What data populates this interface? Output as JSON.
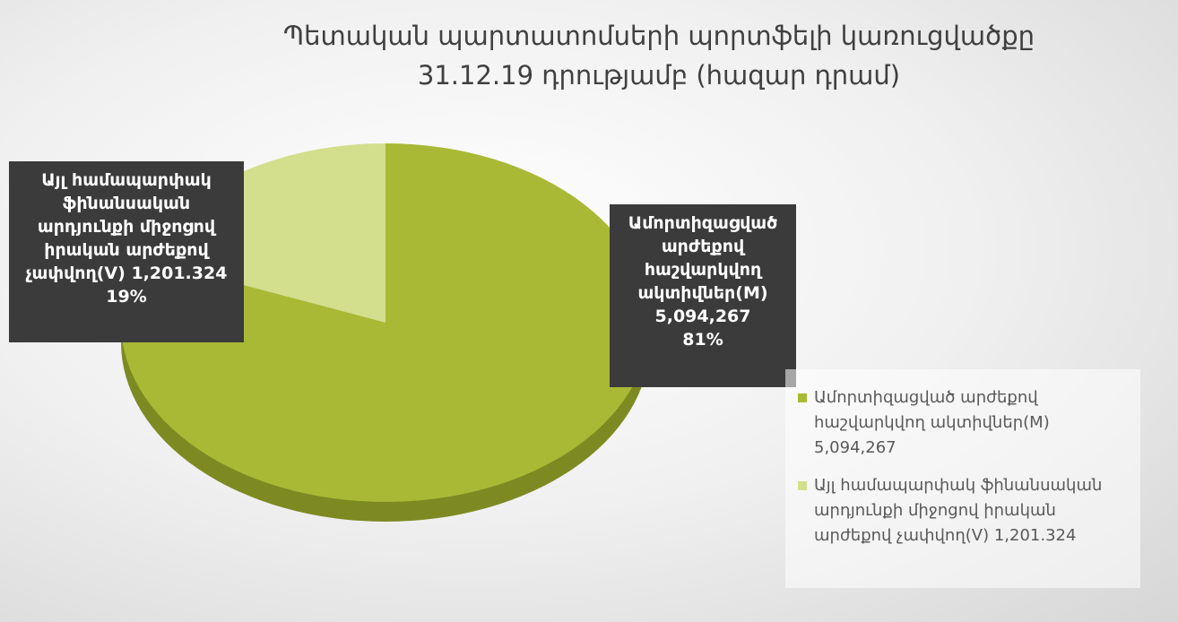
{
  "chart_data": {
    "type": "pie",
    "title": "Պետական պարտատոմսերի պորտֆելի կառուցվածքը 31.12.19 դրությամբ (հազար դրամ)",
    "categories": [
      "Ամորտիզացված արժեքով հաշվարկվող ակտիվներ(M)",
      "Այլ համապարփակ ֆինանսական արդյունքի միջոցով իրական արժեքով չափվող(V)"
    ],
    "values": [
      5094267,
      1201324
    ],
    "value_labels": [
      "5,094,267",
      "1,201.324"
    ],
    "percent_labels": [
      "81%",
      "19%"
    ],
    "colors": [
      "#a9b935",
      "#d3df8c"
    ],
    "legend": "right"
  }
}
